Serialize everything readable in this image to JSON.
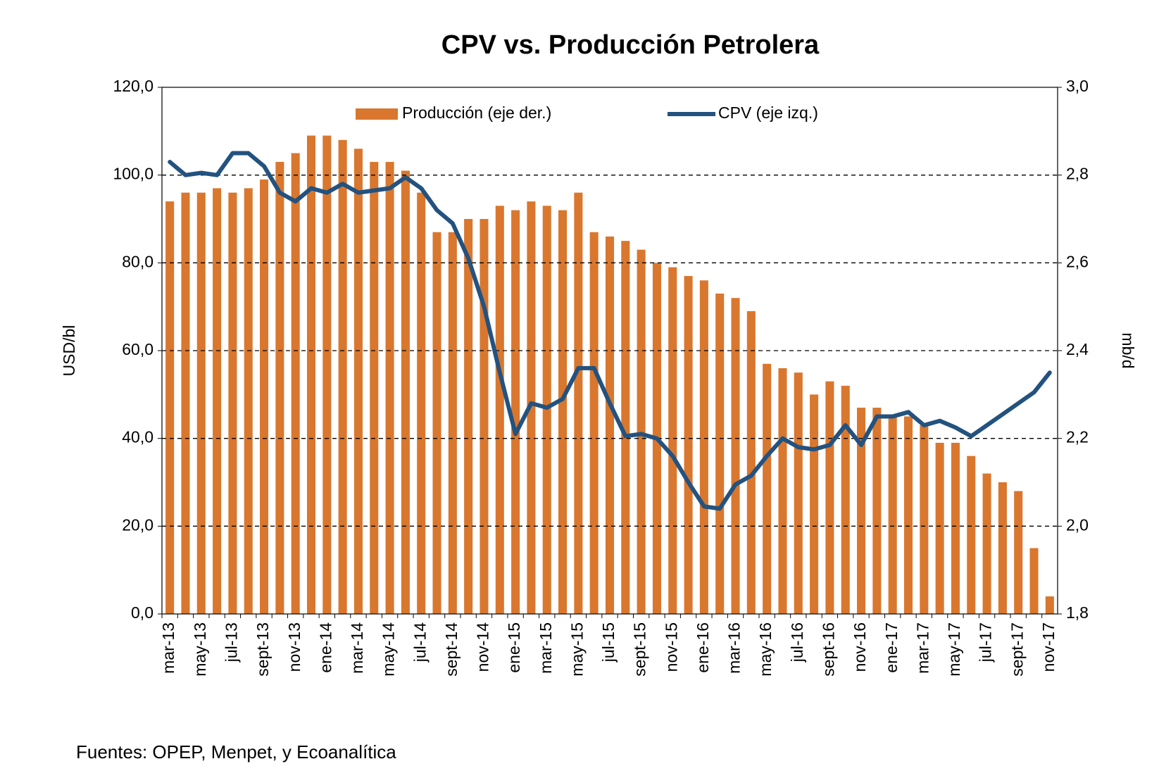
{
  "chart_data": {
    "type": "bar-line",
    "title": "CPV vs. Producción Petrolera",
    "ylabel": "USD/bl",
    "y2label": "mb/d",
    "source": "Fuentes:  OPEP, Menpet,  y Ecoanalítica",
    "categories": [
      "mar-13",
      null,
      "may-13",
      null,
      "jul-13",
      null,
      "sept-13",
      null,
      "nov-13",
      null,
      "ene-14",
      null,
      "mar-14",
      null,
      "may-14",
      null,
      "jul-14",
      null,
      "sept-14",
      null,
      "nov-14",
      null,
      "ene-15",
      null,
      "mar-15",
      null,
      "may-15",
      null,
      "jul-15",
      null,
      "sept-15",
      null,
      "nov-15",
      null,
      "ene-16",
      null,
      "mar-16",
      null,
      "may-16",
      null,
      "jul-16",
      null,
      "sept-16",
      null,
      "nov-16",
      null,
      "ene-17",
      null,
      "mar-17",
      null,
      "may-17",
      null,
      "jul-17",
      null,
      "sept-17",
      null,
      "nov-17"
    ],
    "series": [
      {
        "name": "Producción (eje der.)",
        "type": "bar",
        "axis": "y2",
        "color": "#d9772e",
        "values": [
          2.74,
          2.76,
          2.76,
          2.77,
          2.76,
          2.77,
          2.79,
          2.83,
          2.85,
          2.89,
          2.89,
          2.88,
          2.86,
          2.83,
          2.83,
          2.81,
          2.76,
          2.67,
          2.67,
          2.7,
          2.7,
          2.73,
          2.72,
          2.74,
          2.73,
          2.72,
          2.76,
          2.67,
          2.66,
          2.65,
          2.63,
          2.6,
          2.59,
          2.57,
          2.56,
          2.53,
          2.52,
          2.49,
          2.37,
          2.36,
          2.35,
          2.3,
          2.33,
          2.32,
          2.27,
          2.27,
          2.25,
          2.25,
          2.23,
          2.19,
          2.19,
          2.16,
          2.12,
          2.1,
          2.08,
          1.95,
          1.84
        ]
      },
      {
        "name": "CPV (eje izq.)",
        "type": "line",
        "axis": "y",
        "color": "#23527f",
        "values": [
          103,
          100,
          100.5,
          100,
          105,
          105,
          102,
          96,
          94,
          97,
          96,
          98,
          96,
          96.5,
          97,
          99.5,
          97,
          92,
          89,
          81,
          70,
          55,
          41,
          48,
          47,
          49,
          56,
          56,
          48,
          40.5,
          41,
          40,
          36,
          30,
          24.5,
          24,
          29.5,
          31.5,
          36,
          40,
          38,
          37.5,
          38.5,
          43,
          38.5,
          45,
          45,
          46,
          43,
          44,
          42.5,
          40.5,
          43,
          45.5,
          48,
          50.5,
          55
        ]
      }
    ],
    "ylim": [
      0,
      120
    ],
    "yticks": [
      {
        "value": 0,
        "label": "0,0"
      },
      {
        "value": 20,
        "label": "20,0"
      },
      {
        "value": 40,
        "label": "40,0"
      },
      {
        "value": 60,
        "label": "60,0"
      },
      {
        "value": 80,
        "label": "80,0"
      },
      {
        "value": 100,
        "label": "100,0"
      },
      {
        "value": 120,
        "label": "120,0"
      }
    ],
    "y2lim": [
      1.8,
      3.0
    ],
    "y2ticks": [
      {
        "value": 1.8,
        "label": "1,8"
      },
      {
        "value": 2.0,
        "label": "2,0"
      },
      {
        "value": 2.2,
        "label": "2,2"
      },
      {
        "value": 2.4,
        "label": "2,4"
      },
      {
        "value": 2.6,
        "label": "2,6"
      },
      {
        "value": 2.8,
        "label": "2,8"
      },
      {
        "value": 3.0,
        "label": "3,0"
      }
    ],
    "grid": true,
    "legend": "top"
  }
}
